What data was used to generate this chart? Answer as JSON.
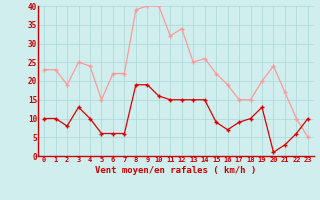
{
  "xlabel": "Vent moyen/en rafales ( km/h )",
  "hours": [
    0,
    1,
    2,
    3,
    4,
    5,
    6,
    7,
    8,
    9,
    10,
    11,
    12,
    13,
    14,
    15,
    16,
    17,
    18,
    19,
    20,
    21,
    22,
    23
  ],
  "wind_mean": [
    10,
    10,
    8,
    13,
    10,
    6,
    6,
    6,
    19,
    19,
    16,
    15,
    15,
    15,
    15,
    9,
    7,
    9,
    10,
    13,
    1,
    3,
    6,
    10
  ],
  "wind_gust": [
    23,
    23,
    19,
    25,
    24,
    15,
    22,
    22,
    39,
    40,
    40,
    32,
    34,
    25,
    26,
    22,
    19,
    15,
    15,
    20,
    24,
    17,
    10,
    5
  ],
  "bg_color": "#d0eeee",
  "grid_color": "#a8d8d8",
  "mean_color": "#dd0000",
  "gust_color": "#ff9999",
  "label_color": "#cc0000",
  "ylim": [
    0,
    40
  ],
  "yticks": [
    0,
    5,
    10,
    15,
    20,
    25,
    30,
    35,
    40
  ]
}
